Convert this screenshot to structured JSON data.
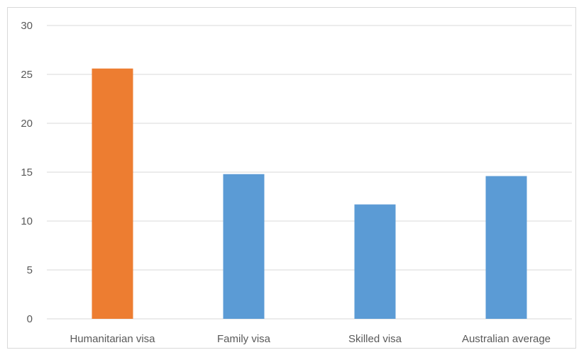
{
  "chart_data": {
    "type": "bar",
    "title": "",
    "xlabel": "",
    "ylabel": "",
    "categories": [
      "Humanitarian visa",
      "Family visa",
      "Skilled visa",
      "Australian average"
    ],
    "values": [
      25.6,
      14.8,
      11.7,
      14.6
    ],
    "bar_colors": [
      "#ED7D31",
      "#5B9BD5",
      "#5B9BD5",
      "#5B9BD5"
    ],
    "ylim": [
      0,
      30
    ],
    "yticks": [
      0,
      5,
      10,
      15,
      20,
      25,
      30
    ],
    "grid": true,
    "legend": "none"
  }
}
